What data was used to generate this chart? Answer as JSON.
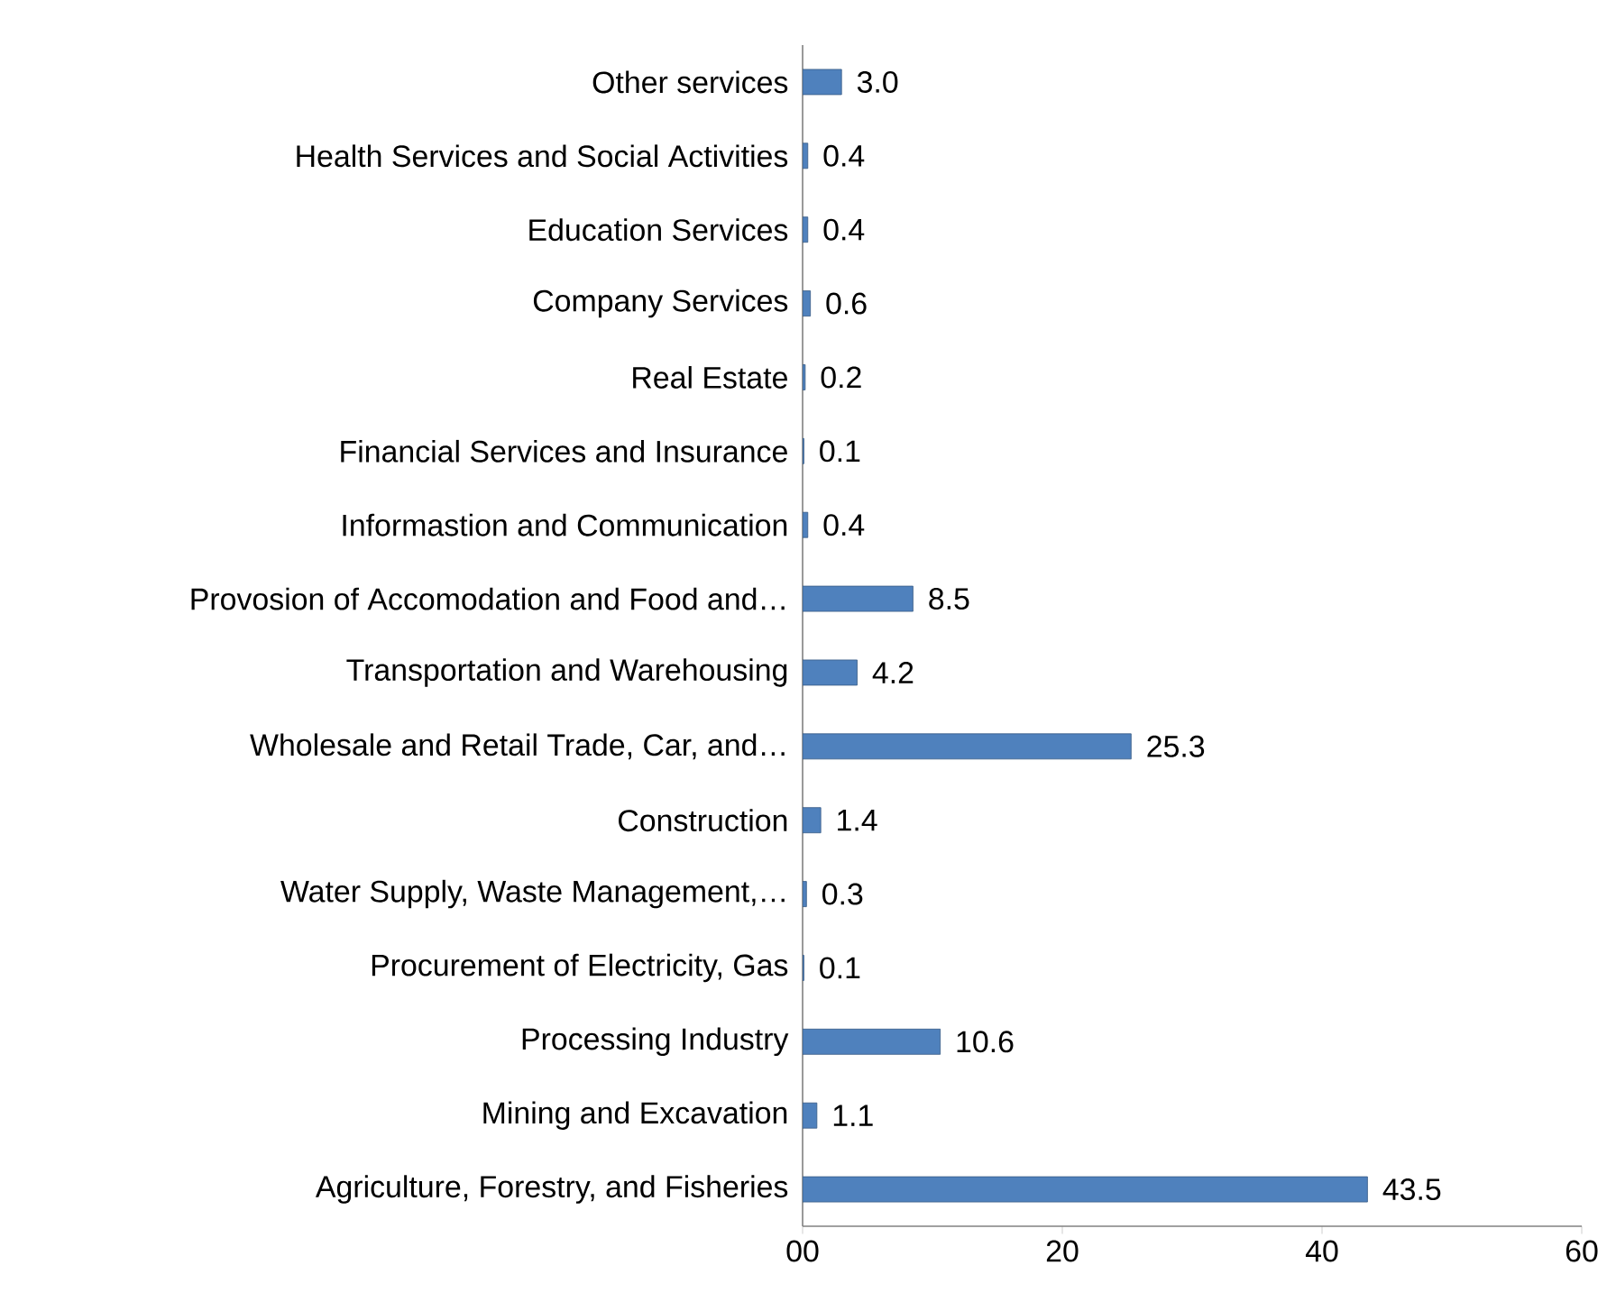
{
  "chart_data": {
    "type": "bar",
    "orientation": "horizontal",
    "categories": [
      "Other services",
      "Health Services and Social Activities",
      "Education Services",
      "Company Services",
      "Real Estate",
      "Financial Services and Insurance",
      "Informastion and Communication",
      "Provosion of Accomodation and Food and…",
      "Transportation and Warehousing",
      "Wholesale and Retail Trade, Car, and…",
      "Construction",
      "Water Supply, Waste Management,…",
      "Procurement of Electricity, Gas",
      "Processing Industry",
      "Mining and Excavation",
      "Agriculture, Forestry, and Fisheries"
    ],
    "values": [
      3.0,
      0.4,
      0.4,
      0.6,
      0.2,
      0.1,
      0.4,
      8.5,
      4.2,
      25.3,
      1.4,
      0.3,
      0.1,
      10.6,
      1.1,
      43.5
    ],
    "value_labels": [
      "3.0",
      "0.4",
      "0.4",
      "0.6",
      "0.2",
      "0.1",
      "0.4",
      "8.5",
      "4.2",
      "25.3",
      "1.4",
      "0.3",
      "0.1",
      "10.6",
      "1.1",
      "43.5"
    ],
    "color": "#4f81bd",
    "xlim": [
      0,
      60
    ],
    "xticks": [
      {
        "value": 0,
        "label": "00"
      },
      20,
      40,
      60
    ]
  }
}
